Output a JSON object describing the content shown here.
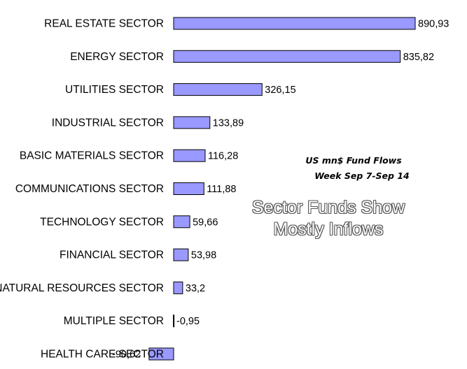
{
  "chart_data": {
    "type": "bar",
    "orientation": "horizontal",
    "categories": [
      "REAL ESTATE SECTOR",
      "ENERGY SECTOR",
      "UTILITIES SECTOR",
      "INDUSTRIAL SECTOR",
      "BASIC MATERIALS SECTOR",
      "COMMUNICATIONS SECTOR",
      "TECHNOLOGY SECTOR",
      "FINANCIAL SECTOR",
      "NATURAL RESOURCES SECTOR",
      "MULTIPLE SECTOR",
      "HEALTH CARE SECTOR"
    ],
    "values": [
      890.93,
      835.82,
      326.15,
      133.89,
      116.28,
      111.88,
      59.66,
      53.98,
      33.2,
      -0.95,
      -90.62
    ],
    "value_labels": [
      "890,93",
      "835,82",
      "326,15",
      "133,89",
      "116,28",
      "111,88",
      "59,66",
      "53,98",
      "33,2",
      "-0,95",
      "-90,62"
    ],
    "bar_color": "#9999ff",
    "grid": false,
    "legend": "none",
    "annotations": {
      "subtitle_lines": [
        "US mn$ Fund Flows",
        "Week Sep 7-Sep 14"
      ],
      "headline_lines": [
        "Sector Funds Show",
        "Mostly Inflows"
      ]
    }
  }
}
